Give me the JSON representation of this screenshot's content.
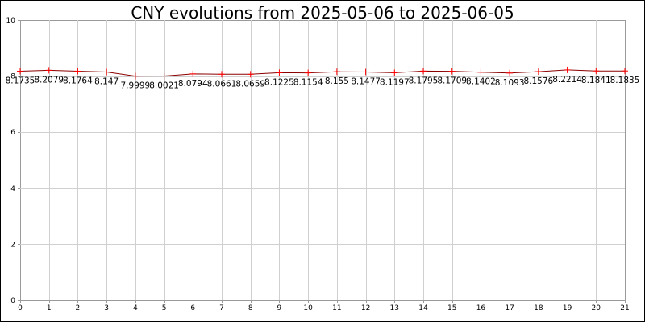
{
  "chart_data": {
    "type": "line",
    "title": "CNY evolutions from 2025-05-06 to 2025-06-05",
    "xlabel": "",
    "ylabel": "",
    "x": [
      0,
      1,
      2,
      3,
      4,
      5,
      6,
      7,
      8,
      9,
      10,
      11,
      12,
      13,
      14,
      15,
      16,
      17,
      18,
      19,
      20,
      21
    ],
    "xlim": [
      0,
      21
    ],
    "ylim": [
      0,
      10
    ],
    "x_ticks": [
      0,
      1,
      2,
      3,
      4,
      5,
      6,
      7,
      8,
      9,
      10,
      11,
      12,
      13,
      14,
      15,
      16,
      17,
      18,
      19,
      20,
      21
    ],
    "y_ticks": [
      0,
      2,
      4,
      6,
      8,
      10
    ],
    "grid": true,
    "series": [
      {
        "values": [
          8.1735,
          8.2079,
          8.1764,
          8.147,
          7.9999,
          8.0021,
          8.0794,
          8.0661,
          8.0659,
          8.1225,
          8.1154,
          8.155,
          8.1477,
          8.1197,
          8.1795,
          8.1709,
          8.1402,
          8.1093,
          8.1576,
          8.2214,
          8.1841,
          8.1835
        ],
        "labels": [
          "8.1735",
          "8.2079",
          "8.1764",
          "8.147",
          "7.9999",
          "8.0021",
          "8.0794",
          "8.0661",
          "8.0659",
          "8.1225",
          "8.1154",
          "8.155",
          "8.1477",
          "8.1197",
          "8.1795",
          "8.1709",
          "8.1402",
          "8.1093",
          "8.1576",
          "8.2214",
          "8.1841",
          "8.1835"
        ],
        "line_color": "#8b0000",
        "marker_color": "#ff0000",
        "marker": "plus"
      }
    ]
  }
}
